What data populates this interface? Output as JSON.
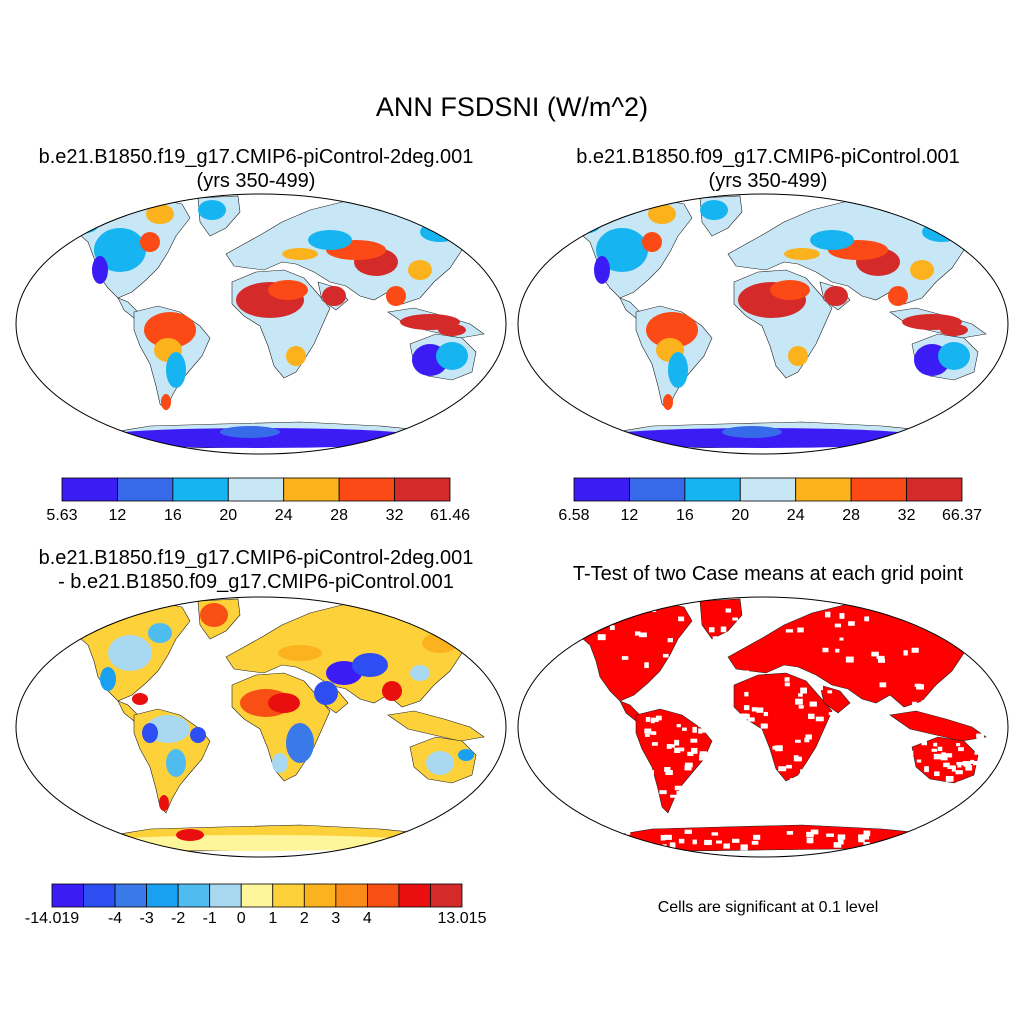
{
  "title": "ANN FSDSNI (W/m^2)",
  "panels": [
    {
      "id": "case1",
      "title_line1": "b.e21.B1850.f19_g17.CMIP6-piControl-2deg.001",
      "title_line2": "(yrs 350-499)"
    },
    {
      "id": "case2",
      "title_line1": "b.e21.B1850.f09_g17.CMIP6-piControl.001",
      "title_line2": "(yrs 350-499)"
    },
    {
      "id": "diff",
      "title_line1": "b.e21.B1850.f19_g17.CMIP6-piControl-2deg.001",
      "title_line2": "- b.e21.B1850.f09_g17.CMIP6-piControl.001"
    },
    {
      "id": "ttest",
      "title_line1": "T-Test of two Case means at each grid point",
      "note": "Cells are significant at 0.1 level",
      "significant_color": "#ff0000"
    }
  ],
  "colorbars": {
    "case1": {
      "colors": [
        "#3b1cf5",
        "#366ae8",
        "#16b4f0",
        "#c7e7f6",
        "#fbb21d",
        "#fb4a15",
        "#d42b2a"
      ],
      "labels": [
        "5.63",
        "12",
        "16",
        "20",
        "24",
        "28",
        "32",
        "61.46"
      ]
    },
    "case2": {
      "colors": [
        "#3b1cf5",
        "#366ae8",
        "#16b4f0",
        "#c7e7f6",
        "#fbb21d",
        "#fb4a15",
        "#d42b2a"
      ],
      "labels": [
        "6.58",
        "12",
        "16",
        "20",
        "24",
        "28",
        "32",
        "66.37"
      ]
    },
    "diff": {
      "colors": [
        "#3b1cf5",
        "#2d4ef2",
        "#3a7ae8",
        "#1aa0f0",
        "#4fbcf0",
        "#a8d8f0",
        "#fff59a",
        "#fdd13a",
        "#fcb21f",
        "#fb8a16",
        "#f85014",
        "#ea0f0f",
        "#d42b2a"
      ],
      "labels": [
        "-14.019",
        "-4",
        "-3",
        "-2",
        "-1",
        "0",
        "1",
        "2",
        "3",
        "4",
        "13.015"
      ],
      "label_slots": [
        0,
        2,
        3,
        4,
        5,
        6,
        7,
        8,
        9,
        10,
        13
      ]
    }
  },
  "map_colors": {
    "land_base_case": "#c7e7f6",
    "land_base_diff": "#fdd13a",
    "ttest_land": "#ff0000"
  }
}
